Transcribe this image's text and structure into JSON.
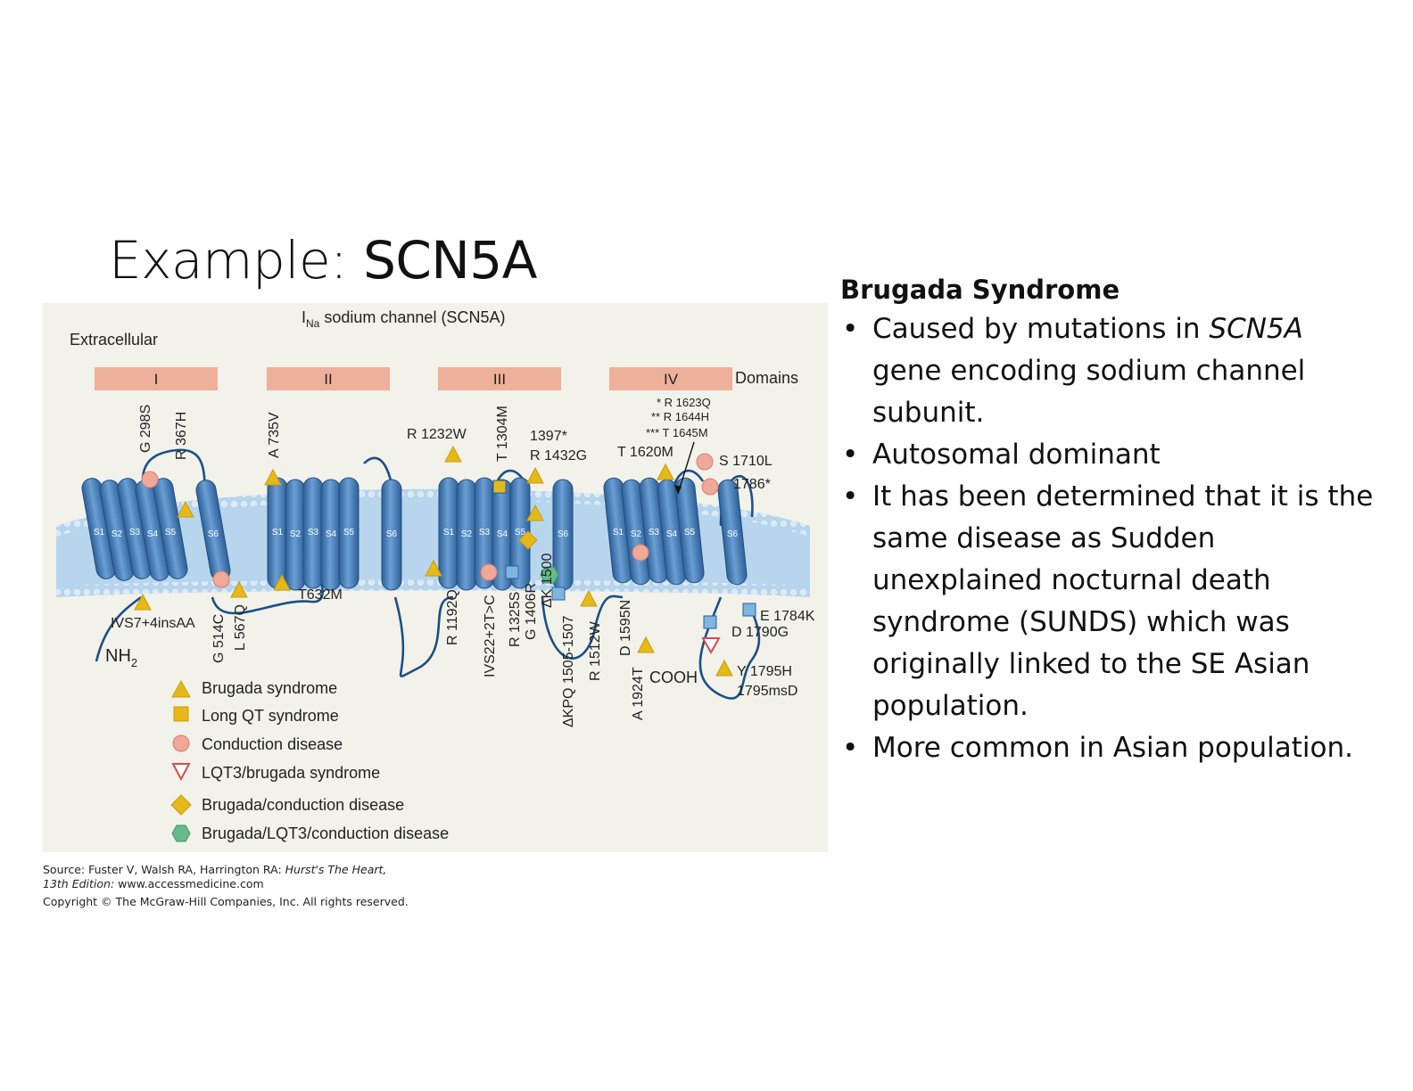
{
  "slide": {
    "title_prefix": "Example: ",
    "title_gene": "SCN5A"
  },
  "figure": {
    "title_main": "I",
    "title_sub": "Na",
    "title_rest": " sodium channel (SCN5A)",
    "extracellular_label": "Extracellular",
    "domains_label": "Domains",
    "domains": [
      "I",
      "II",
      "III",
      "IV"
    ],
    "segments": [
      "S1",
      "S2",
      "S3",
      "S4",
      "S5",
      "S6"
    ],
    "mutations": {
      "g298s": "G 298S",
      "r367h": "R 367H",
      "a735v": "A 735V",
      "r1232w": "R 1232W",
      "t1304m": "T 1304M",
      "n1397": "1397*",
      "r1432g": "R 1432G",
      "t1620m": "T 1620M",
      "r1623q": "* R 1623Q",
      "r1644h": "** R 1644H",
      "t1645m": "*** T 1645M",
      "s1710l": "S 1710L",
      "n1786": "1786*",
      "ivs7": "IVS7+4insAA",
      "g514c": "G 514C",
      "l567q": "L 567Q",
      "t632m": "T632M",
      "r1192q": "R 1192Q",
      "ivs22": "IVS22+2T>C",
      "r1325s": "R 1325S",
      "g1406r": "G 1406R",
      "dk1500": "ΔK 1500",
      "dkpq": "ΔKPQ 1505-1507",
      "r1512w": "R 1512W",
      "d1595n": "D 1595N",
      "a1924t": "A 1924T",
      "e1784k": "E 1784K",
      "d1790g": "D 1790G",
      "y1795h": "Y 1795H",
      "ms1795": "1795msD"
    },
    "nh2_label": "NH",
    "nh2_sub": "2",
    "cooh_label": "COOH",
    "legend": [
      {
        "shape": "triangle",
        "color": "#e6b919",
        "label": "Brugada syndrome"
      },
      {
        "shape": "square",
        "color": "#e6b919",
        "label": "Long QT syndrome"
      },
      {
        "shape": "circle",
        "color": "#f0a898",
        "label": "Conduction disease"
      },
      {
        "shape": "triangle-down",
        "color": "#d94a4a",
        "label": "LQT3/brugada syndrome"
      },
      {
        "shape": "diamond",
        "color": "#e6b919",
        "label": "Brugada/conduction disease"
      },
      {
        "shape": "hexagon",
        "color": "#66bb88",
        "label": "Brugada/LQT3/conduction disease"
      }
    ],
    "colors": {
      "background": "#f2f2ea",
      "domain_bar": "#eeb09a",
      "helix": "#4d82bd",
      "membrane": "#b7d6ee",
      "brugada": "#e6b919",
      "conduction": "#f0a898",
      "lqt": "#7fb6e0"
    }
  },
  "source": {
    "line1_prefix": "Source: Fuster V, Walsh RA, Harrington RA: ",
    "line1_book": "Hurst's The Heart,",
    "line2_edition": "13th Edition:",
    "line2_url": " www.accessmedicine.com",
    "copyright": "Copyright © The McGraw-Hill Companies, Inc. All rights reserved."
  },
  "panel": {
    "heading": "Brugada Syndrome",
    "bullet_char": "•",
    "b1_prefix": "Caused by mutations in ",
    "b1_gene": "SCN5A",
    "b1_suffix": " gene encoding sodium channel subunit.",
    "b2": "Autosomal dominant",
    "b3": "It has been determined that it is the same disease as Sudden unexplained nocturnal death syndrome (SUNDS) which was originally linked to the SE Asian population.",
    "b4": "More common in Asian population."
  }
}
